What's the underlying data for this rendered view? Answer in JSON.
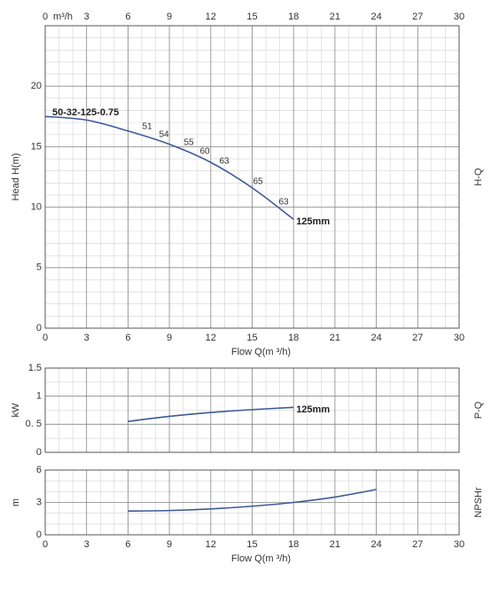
{
  "chart_data": [
    {
      "type": "line",
      "xlabel": "Flow Q(m ³/h)",
      "ylabel": "Head H(m)",
      "side_label": "H-Q",
      "model": "50-32-125-0.75",
      "x": [
        0,
        3,
        6,
        9,
        12,
        15,
        18
      ],
      "series": [
        {
          "name": "125mm",
          "color": "#3d5a99",
          "values": [
            17.5,
            17.2,
            16.3,
            15.2,
            13.7,
            11.6,
            9.0
          ]
        }
      ],
      "efficiency_labels": [
        51,
        54,
        55,
        60,
        63,
        65,
        63
      ],
      "xlim": [
        0,
        30
      ],
      "ylim": [
        0,
        25
      ],
      "xticks": [
        0,
        3,
        6,
        9,
        12,
        15,
        18,
        21,
        24,
        27,
        30
      ],
      "yticks": [
        0,
        5,
        10,
        15,
        20
      ],
      "x2ticks": [
        0,
        3,
        6,
        9,
        12,
        15,
        18,
        21,
        24,
        27,
        30
      ],
      "x2_unit": "m³/h",
      "show_xtick_labels": true,
      "grid": true,
      "minor_grid_step": {
        "x": 1,
        "y": 1
      }
    },
    {
      "type": "line",
      "ylabel": "kW",
      "side_label": "P-Q",
      "x": [
        6,
        9,
        12,
        15,
        18
      ],
      "series": [
        {
          "name": "125mm",
          "color": "#3d5a99",
          "values": [
            0.55,
            0.64,
            0.71,
            0.76,
            0.8
          ]
        }
      ],
      "xlim": [
        0,
        30
      ],
      "ylim": [
        0,
        1.5
      ],
      "xticks": [
        0,
        3,
        6,
        9,
        12,
        15,
        18,
        21,
        24,
        27,
        30
      ],
      "yticks": [
        0,
        {
          "value": 0.5,
          "label": "0. 5"
        },
        1,
        1.5
      ],
      "show_xtick_labels": false,
      "grid": true,
      "minor_grid_step": {
        "x": 1,
        "y": 0.25
      }
    },
    {
      "type": "line",
      "xlabel": "Flow Q(m ³/h)",
      "ylabel": "m",
      "side_label": "NPSHr",
      "x": [
        6,
        9,
        12,
        15,
        18,
        21,
        24
      ],
      "series": [
        {
          "color": "#3d5a99",
          "values": [
            2.2,
            2.25,
            2.4,
            2.65,
            3.0,
            3.5,
            4.2
          ]
        }
      ],
      "xlim": [
        0,
        30
      ],
      "ylim": [
        0,
        6
      ],
      "xticks": [
        0,
        3,
        6,
        9,
        12,
        15,
        18,
        21,
        24,
        27,
        30
      ],
      "yticks": [
        0,
        3,
        6
      ],
      "show_xtick_labels": true,
      "grid": true,
      "minor_grid_step": {
        "x": 1,
        "y": 1
      }
    }
  ]
}
